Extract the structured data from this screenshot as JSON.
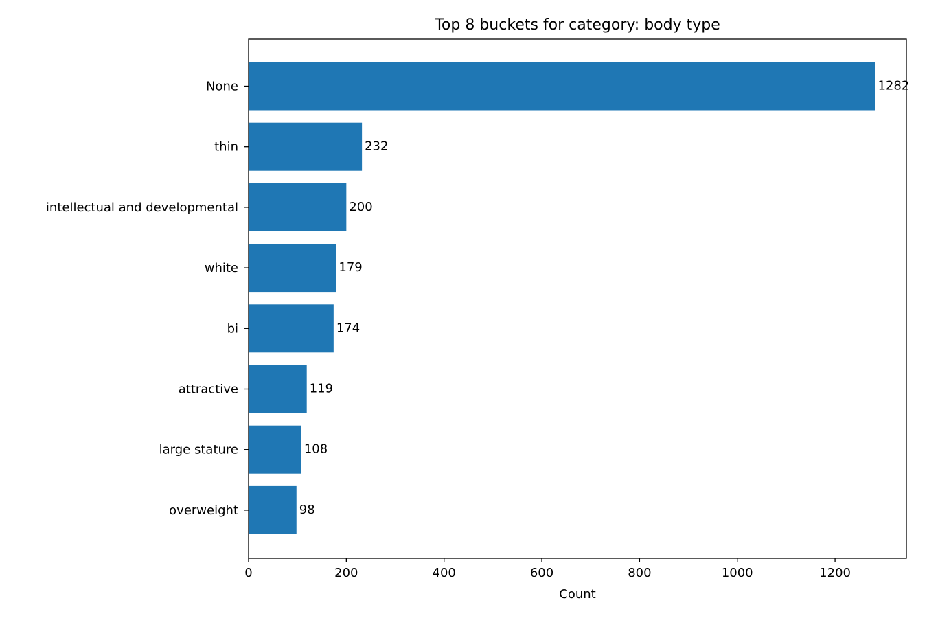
{
  "chart_data": {
    "type": "bar",
    "orientation": "horizontal",
    "title": "Top 8 buckets for category: body type",
    "xlabel": "Count",
    "ylabel": "",
    "categories": [
      "None",
      "thin",
      "intellectual and developmental",
      "white",
      "bi",
      "attractive",
      "large stature",
      "overweight"
    ],
    "values": [
      1282,
      232,
      200,
      179,
      174,
      119,
      108,
      98
    ],
    "xlim": [
      0,
      1346
    ],
    "xticks": [
      0,
      200,
      400,
      600,
      800,
      1000,
      1200
    ],
    "grid": false,
    "legend": "none",
    "bar_color": "#1f77b4"
  }
}
